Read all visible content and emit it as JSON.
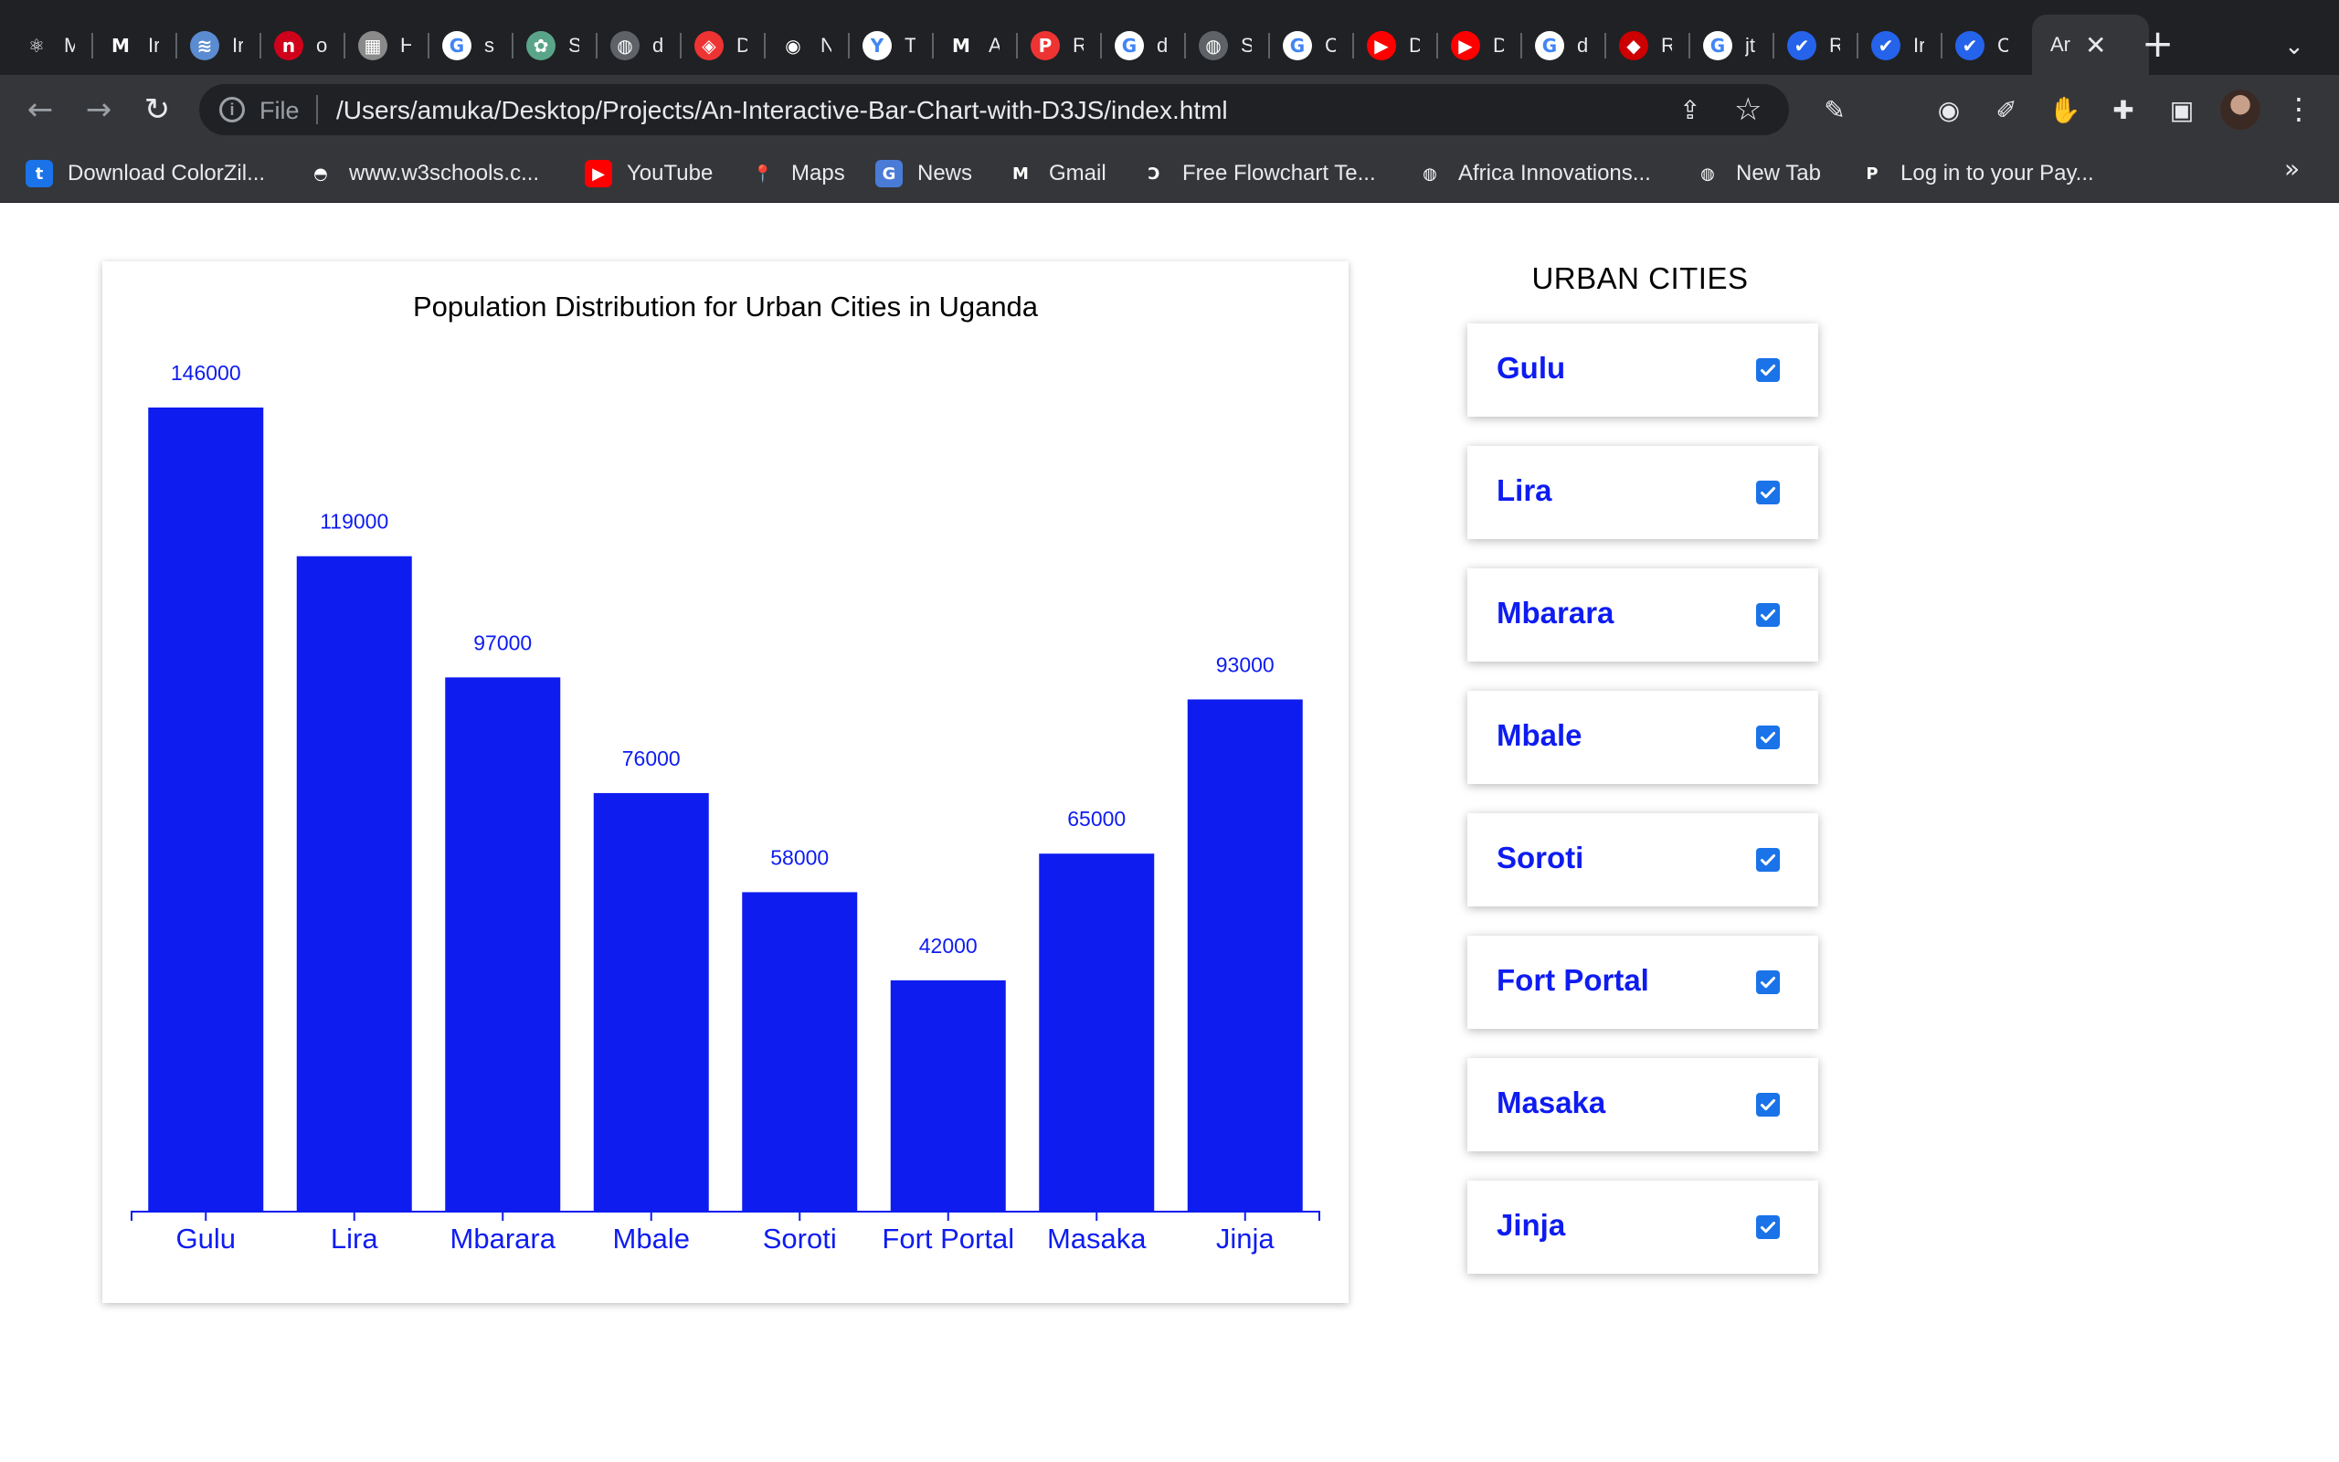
{
  "browser": {
    "tabs": [
      {
        "icon": "react-icon",
        "label": "M",
        "color": "#202124",
        "glyph": "⚛"
      },
      {
        "icon": "gmail-icon",
        "label": "Ir",
        "color": "#202124",
        "glyph": "M"
      },
      {
        "icon": "site-icon",
        "label": "Ir",
        "color": "#5b8bd0",
        "glyph": "≋"
      },
      {
        "icon": "netlify-icon",
        "label": "o",
        "color": "#d0021b",
        "glyph": "n"
      },
      {
        "icon": "photo-icon",
        "label": "H",
        "color": "#8a8a8a",
        "glyph": "▦"
      },
      {
        "icon": "google-icon",
        "label": "s",
        "color": "#ffffff",
        "glyph": "G"
      },
      {
        "icon": "chatgpt-icon",
        "label": "S",
        "color": "#5aa48a",
        "glyph": "✿"
      },
      {
        "icon": "globe-icon",
        "label": "d",
        "color": "#5f6368",
        "glyph": "◍"
      },
      {
        "icon": "shield-icon",
        "label": "D",
        "color": "#e33",
        "glyph": "◈"
      },
      {
        "icon": "github-icon",
        "label": "N",
        "color": "#202124",
        "glyph": "◉"
      },
      {
        "icon": "y-icon",
        "label": "T",
        "color": "#ffffff",
        "glyph": "Y"
      },
      {
        "icon": "gmail-icon",
        "label": "A",
        "color": "#202124",
        "glyph": "M"
      },
      {
        "icon": "p-icon",
        "label": "R",
        "color": "#e33",
        "glyph": "P"
      },
      {
        "icon": "google-icon",
        "label": "d",
        "color": "#ffffff",
        "glyph": "G"
      },
      {
        "icon": "globe-icon",
        "label": "S",
        "color": "#5f6368",
        "glyph": "◍"
      },
      {
        "icon": "google-icon",
        "label": "C",
        "color": "#ffffff",
        "glyph": "G"
      },
      {
        "icon": "youtube-icon",
        "label": "D",
        "color": "#ff0000",
        "glyph": "▶"
      },
      {
        "icon": "youtube-icon",
        "label": "D",
        "color": "#ff0000",
        "glyph": "▶"
      },
      {
        "icon": "google-icon",
        "label": "d",
        "color": "#ffffff",
        "glyph": "G"
      },
      {
        "icon": "ruby-icon",
        "label": "R",
        "color": "#c00",
        "glyph": "◆"
      },
      {
        "icon": "google-icon",
        "label": "jt",
        "color": "#ffffff",
        "glyph": "G"
      },
      {
        "icon": "bird-icon",
        "label": "R",
        "color": "#2563eb",
        "glyph": "✔"
      },
      {
        "icon": "bird-icon",
        "label": "Ir",
        "color": "#2563eb",
        "glyph": "✔"
      },
      {
        "icon": "bird-icon",
        "label": "C",
        "color": "#2563eb",
        "glyph": "✔"
      },
      {
        "icon": "active-tab-icon",
        "label": "Ar",
        "color": "#35363a",
        "glyph": ""
      }
    ],
    "address": {
      "scheme_label": "File",
      "url": "/Users/amuka/Desktop/Projects/An-Interactive-Bar-Chart-with-D3JS/index.html"
    },
    "bookmarks": [
      {
        "icon": "colorzilla-icon",
        "label": "Download ColorZil...",
        "color": "#1a73e8",
        "glyph": "t"
      },
      {
        "icon": "w3schools-icon",
        "label": "www.w3schools.c...",
        "color": "#35363a",
        "glyph": "◓"
      },
      {
        "icon": "youtube-icon",
        "label": "YouTube",
        "color": "#ff0000",
        "glyph": "▶"
      },
      {
        "icon": "maps-icon",
        "label": "Maps",
        "color": "#35363a",
        "glyph": "📍"
      },
      {
        "icon": "news-icon",
        "label": "News",
        "color": "#4a7bd6",
        "glyph": "G"
      },
      {
        "icon": "gmail-icon",
        "label": "Gmail",
        "color": "#35363a",
        "glyph": "M"
      },
      {
        "icon": "flowchart-icon",
        "label": "Free Flowchart Te...",
        "color": "#35363a",
        "glyph": "Ↄ"
      },
      {
        "icon": "globe-icon",
        "label": "Africa Innovations...",
        "color": "#35363a",
        "glyph": "◍"
      },
      {
        "icon": "globe-icon",
        "label": "New Tab",
        "color": "#35363a",
        "glyph": "◍"
      },
      {
        "icon": "paypal-icon",
        "label": "Log in to your Pay...",
        "color": "#35363a",
        "glyph": "P"
      }
    ]
  },
  "chart_data": {
    "type": "bar",
    "title": "Population Distribution for Urban Cities in Uganda",
    "categories": [
      "Gulu",
      "Lira",
      "Mbarara",
      "Mbale",
      "Soroti",
      "Fort Portal",
      "Masaka",
      "Jinja"
    ],
    "values": [
      146000,
      119000,
      97000,
      76000,
      58000,
      42000,
      65000,
      93000
    ],
    "xlabel": "",
    "ylabel": "",
    "ylim": [
      0,
      146000
    ],
    "grid": false,
    "bar_color": "#0e1cf0",
    "label_color": "#0e1cf0"
  },
  "sidebar": {
    "title": "URBAN CITIES",
    "cities": [
      {
        "name": "Gulu",
        "checked": true
      },
      {
        "name": "Lira",
        "checked": true
      },
      {
        "name": "Mbarara",
        "checked": true
      },
      {
        "name": "Mbale",
        "checked": true
      },
      {
        "name": "Soroti",
        "checked": true
      },
      {
        "name": "Fort Portal",
        "checked": true
      },
      {
        "name": "Masaka",
        "checked": true
      },
      {
        "name": "Jinja",
        "checked": true
      }
    ]
  }
}
